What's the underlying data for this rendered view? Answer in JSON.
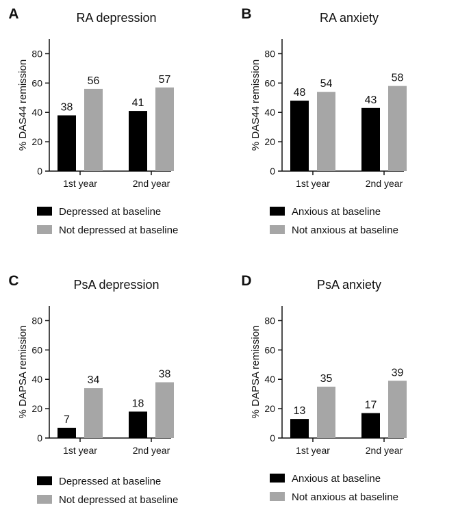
{
  "colors": {
    "series1": "#000000",
    "series2": "#a6a6a6",
    "axis": "#111111"
  },
  "chart_data": [
    {
      "panel": "A",
      "type": "bar",
      "title": "RA depression",
      "ylabel": "% DAS44 remission",
      "categories": [
        "1st year",
        "2nd year"
      ],
      "ylim": [
        0,
        90
      ],
      "yticks": [
        0,
        20,
        40,
        60,
        80
      ],
      "series": [
        {
          "name": "Depressed at baseline",
          "values": [
            38,
            41
          ],
          "color": "#000000"
        },
        {
          "name": "Not depressed at baseline",
          "values": [
            56,
            57
          ],
          "color": "#a6a6a6"
        }
      ],
      "legend": "bottom"
    },
    {
      "panel": "B",
      "type": "bar",
      "title": "RA anxiety",
      "ylabel": "% DAS44 remission",
      "categories": [
        "1st year",
        "2nd year"
      ],
      "ylim": [
        0,
        90
      ],
      "yticks": [
        0,
        20,
        40,
        60,
        80
      ],
      "series": [
        {
          "name": "Anxious at baseline",
          "values": [
            48,
            43
          ],
          "color": "#000000"
        },
        {
          "name": "Not anxious at baseline",
          "values": [
            54,
            58
          ],
          "color": "#a6a6a6"
        }
      ],
      "legend": "bottom"
    },
    {
      "panel": "C",
      "type": "bar",
      "title": "PsA depression",
      "ylabel": "% DAPSA remission",
      "categories": [
        "1st year",
        "2nd year"
      ],
      "ylim": [
        0,
        90
      ],
      "yticks": [
        0,
        20,
        40,
        60,
        80
      ],
      "series": [
        {
          "name": "Depressed at baseline",
          "values": [
            7,
            18
          ],
          "color": "#000000"
        },
        {
          "name": "Not depressed at baseline",
          "values": [
            34,
            38
          ],
          "color": "#a6a6a6"
        }
      ],
      "legend": "bottom"
    },
    {
      "panel": "D",
      "type": "bar",
      "title": "PsA anxiety",
      "ylabel": "% DAPSA remission",
      "categories": [
        "1st year",
        "2nd year"
      ],
      "ylim": [
        0,
        90
      ],
      "yticks": [
        0,
        20,
        40,
        60,
        80
      ],
      "series": [
        {
          "name": "Anxious at baseline",
          "values": [
            13,
            17
          ],
          "color": "#000000"
        },
        {
          "name": "Not anxious at baseline",
          "values": [
            35,
            39
          ],
          "color": "#a6a6a6"
        }
      ],
      "legend": "bottom"
    }
  ]
}
